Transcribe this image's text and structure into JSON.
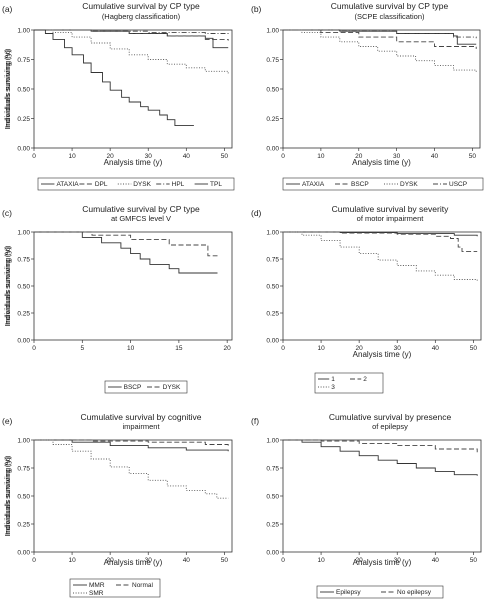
{
  "chart_data": [
    {
      "panel_label": "(a)",
      "type": "line",
      "title": "Cumulative survival by CP type",
      "subtitle": "(Hagberg classification)",
      "xlabel": "Analysis time (y)",
      "ylabel": "Individuals surviving (%)",
      "xlim": [
        0,
        52
      ],
      "ylim": [
        0,
        1
      ],
      "xticks": [
        "0",
        "10",
        "20",
        "30",
        "40",
        "50"
      ],
      "yticks": [
        "0.00",
        "0.25",
        "0.50",
        "0.75",
        "1.00"
      ],
      "xtick_values": [
        0,
        10,
        20,
        30,
        40,
        50
      ],
      "ytick_values": [
        0,
        0.25,
        0.5,
        0.75,
        1
      ],
      "legend_position": "bottom",
      "series": [
        {
          "name": "ATAXIA",
          "style": "solid",
          "x": [
            0,
            15,
            25,
            35,
            45,
            47,
            51
          ],
          "y": [
            1,
            0.99,
            0.97,
            0.95,
            0.93,
            0.85,
            0.85
          ]
        },
        {
          "name": "DPL",
          "style": "dash",
          "x": [
            0,
            15,
            25,
            35,
            45,
            51
          ],
          "y": [
            1,
            0.99,
            0.97,
            0.95,
            0.92,
            0.91
          ]
        },
        {
          "name": "DYSK",
          "style": "dot",
          "x": [
            0,
            5,
            10,
            15,
            20,
            25,
            30,
            35,
            40,
            45,
            51
          ],
          "y": [
            1,
            0.98,
            0.94,
            0.89,
            0.84,
            0.79,
            0.75,
            0.71,
            0.68,
            0.65,
            0.63
          ]
        },
        {
          "name": "HPL",
          "style": "dashdot",
          "x": [
            0,
            15,
            30,
            45,
            51
          ],
          "y": [
            1,
            0.99,
            0.98,
            0.97,
            0.96
          ]
        },
        {
          "name": "TPL",
          "style": "solid",
          "x": [
            0,
            3,
            5,
            8,
            10,
            13,
            15,
            18,
            20,
            23,
            25,
            28,
            30,
            33,
            35,
            37,
            39,
            42
          ],
          "y": [
            1,
            0.97,
            0.92,
            0.85,
            0.79,
            0.72,
            0.64,
            0.56,
            0.49,
            0.43,
            0.39,
            0.35,
            0.32,
            0.28,
            0.24,
            0.19,
            0.19,
            0.19
          ]
        }
      ]
    },
    {
      "panel_label": "(b)",
      "type": "line",
      "title": "Cumulative survival by CP type",
      "subtitle": "(SCPE classification)",
      "xlabel": "Analysis time (y)",
      "ylabel": "Individuals surviving (y)",
      "xlim": [
        0,
        52
      ],
      "ylim": [
        0,
        1
      ],
      "xticks": [
        "0",
        "10",
        "20",
        "30",
        "40",
        "50"
      ],
      "yticks": [
        "0.00",
        "0.25",
        "0.50",
        "0.75",
        "1.00"
      ],
      "xtick_values": [
        0,
        10,
        20,
        30,
        40,
        50
      ],
      "ytick_values": [
        0,
        0.25,
        0.5,
        0.75,
        1
      ],
      "legend_position": "bottom",
      "series": [
        {
          "name": "ATAXIA",
          "style": "solid",
          "x": [
            0,
            15,
            30,
            45,
            46,
            51
          ],
          "y": [
            1,
            0.99,
            0.97,
            0.95,
            0.88,
            0.88
          ]
        },
        {
          "name": "BSCP",
          "style": "dash",
          "x": [
            0,
            10,
            20,
            30,
            40,
            51
          ],
          "y": [
            1,
            0.98,
            0.94,
            0.9,
            0.86,
            0.84
          ]
        },
        {
          "name": "DYSK",
          "style": "dot",
          "x": [
            0,
            5,
            10,
            15,
            20,
            25,
            30,
            35,
            40,
            45,
            51
          ],
          "y": [
            1,
            0.98,
            0.94,
            0.9,
            0.86,
            0.82,
            0.78,
            0.74,
            0.7,
            0.66,
            0.64
          ]
        },
        {
          "name": "USCP",
          "style": "dashdot",
          "x": [
            0,
            15,
            30,
            45,
            51
          ],
          "y": [
            1,
            0.99,
            0.97,
            0.94,
            0.93
          ]
        }
      ]
    },
    {
      "panel_label": "(c)",
      "type": "line",
      "title": "Cumulative survival by CP type",
      "subtitle": "at GMFCS level V",
      "xlabel": "",
      "ylabel": "Individuals surviving (%)",
      "xlim": [
        0,
        20.5
      ],
      "ylim": [
        0,
        1
      ],
      "xticks": [
        "0",
        "5",
        "10",
        "15",
        "20"
      ],
      "yticks": [
        "0.00",
        "0.25",
        "0.50",
        "0.75",
        "1.00"
      ],
      "xtick_values": [
        0,
        5,
        10,
        15,
        20
      ],
      "ytick_values": [
        0,
        0.25,
        0.5,
        0.75,
        1
      ],
      "legend_position": "bottom",
      "series": [
        {
          "name": "BSCP",
          "style": "solid",
          "x": [
            0,
            4,
            5,
            6,
            7,
            8,
            9,
            10,
            11,
            12,
            14,
            15,
            16,
            19
          ],
          "y": [
            1,
            1,
            0.95,
            0.95,
            0.9,
            0.9,
            0.85,
            0.8,
            0.75,
            0.7,
            0.66,
            0.62,
            0.62,
            0.62
          ]
        },
        {
          "name": "DYSK",
          "style": "dash",
          "x": [
            0,
            5,
            6,
            9,
            10,
            13,
            14,
            17,
            18,
            19
          ],
          "y": [
            1,
            1,
            0.97,
            0.97,
            0.93,
            0.93,
            0.88,
            0.88,
            0.78,
            0.78
          ]
        }
      ]
    },
    {
      "panel_label": "(d)",
      "type": "line",
      "title": "Cumulative survival by severity",
      "subtitle": "of motor impairment",
      "xlabel": "Analysis time (y)",
      "ylabel": "Individuals surviving (y)",
      "xlim": [
        0,
        52
      ],
      "ylim": [
        0,
        1
      ],
      "xticks": [
        "0",
        "10",
        "20",
        "30",
        "40",
        "50"
      ],
      "yticks": [
        "0.00",
        "0.25",
        "0.50",
        "0.75",
        "1.00"
      ],
      "xtick_values": [
        0,
        10,
        20,
        30,
        40,
        50
      ],
      "ytick_values": [
        0,
        0.25,
        0.5,
        0.75,
        1
      ],
      "legend_position": "bottom",
      "series": [
        {
          "name": "1",
          "style": "solid",
          "x": [
            0,
            15,
            30,
            45,
            51
          ],
          "y": [
            1,
            0.995,
            0.985,
            0.97,
            0.96
          ]
        },
        {
          "name": "2",
          "style": "dash",
          "x": [
            0,
            15,
            30,
            40,
            44,
            46,
            47,
            51
          ],
          "y": [
            1,
            0.99,
            0.98,
            0.96,
            0.94,
            0.86,
            0.82,
            0.82
          ]
        },
        {
          "name": "3",
          "style": "dot",
          "x": [
            0,
            5,
            10,
            15,
            20,
            25,
            30,
            35,
            40,
            45,
            51
          ],
          "y": [
            1,
            0.97,
            0.92,
            0.86,
            0.8,
            0.74,
            0.69,
            0.64,
            0.6,
            0.56,
            0.55
          ]
        }
      ]
    },
    {
      "panel_label": "(e)",
      "type": "line",
      "title": "Cumulative survival by cognitive",
      "subtitle": "impairment",
      "xlabel": "Analysis time (y)",
      "ylabel": "Individuals surviving (%)",
      "xlim": [
        0,
        52
      ],
      "ylim": [
        0,
        1
      ],
      "xticks": [
        "0",
        "10",
        "20",
        "30",
        "40",
        "50"
      ],
      "yticks": [
        "0.00",
        "0.25",
        "0.50",
        "0.75",
        "1.00"
      ],
      "xtick_values": [
        0,
        10,
        20,
        30,
        40,
        50
      ],
      "ytick_values": [
        0,
        0.25,
        0.5,
        0.75,
        1
      ],
      "legend_position": "bottom",
      "series": [
        {
          "name": "MMR",
          "style": "solid",
          "x": [
            0,
            10,
            20,
            30,
            40,
            51
          ],
          "y": [
            1,
            0.98,
            0.95,
            0.93,
            0.91,
            0.9
          ]
        },
        {
          "name": "Normal",
          "style": "dash",
          "x": [
            0,
            15,
            30,
            45,
            51
          ],
          "y": [
            1,
            0.99,
            0.98,
            0.96,
            0.95
          ]
        },
        {
          "name": "SMR",
          "style": "dot",
          "x": [
            0,
            5,
            10,
            15,
            20,
            25,
            30,
            35,
            40,
            45,
            48,
            51
          ],
          "y": [
            1,
            0.96,
            0.9,
            0.83,
            0.76,
            0.7,
            0.64,
            0.59,
            0.55,
            0.52,
            0.48,
            0.48
          ]
        }
      ]
    },
    {
      "panel_label": "(f)",
      "type": "line",
      "title": "Cumulative survival by presence",
      "subtitle": "of epilepsy",
      "xlabel": "Analysis time (y)",
      "ylabel": "Individuals surviving (y)",
      "xlim": [
        0,
        52
      ],
      "ylim": [
        0,
        1
      ],
      "xticks": [
        "0",
        "10",
        "20",
        "30",
        "40",
        "50"
      ],
      "yticks": [
        "0.00",
        "0.25",
        "0.50",
        "0.75",
        "1.00"
      ],
      "xtick_values": [
        0,
        10,
        20,
        30,
        40,
        50
      ],
      "ytick_values": [
        0,
        0.25,
        0.5,
        0.75,
        1
      ],
      "legend_position": "bottom",
      "series": [
        {
          "name": "Epilepsy",
          "style": "solid",
          "x": [
            0,
            5,
            10,
            15,
            20,
            25,
            30,
            35,
            40,
            45,
            51
          ],
          "y": [
            1,
            0.98,
            0.94,
            0.9,
            0.86,
            0.82,
            0.79,
            0.75,
            0.72,
            0.69,
            0.68
          ]
        },
        {
          "name": "No epilepsy",
          "style": "dash",
          "x": [
            0,
            10,
            20,
            30,
            40,
            51
          ],
          "y": [
            1,
            0.99,
            0.97,
            0.95,
            0.92,
            0.89
          ]
        }
      ]
    }
  ]
}
